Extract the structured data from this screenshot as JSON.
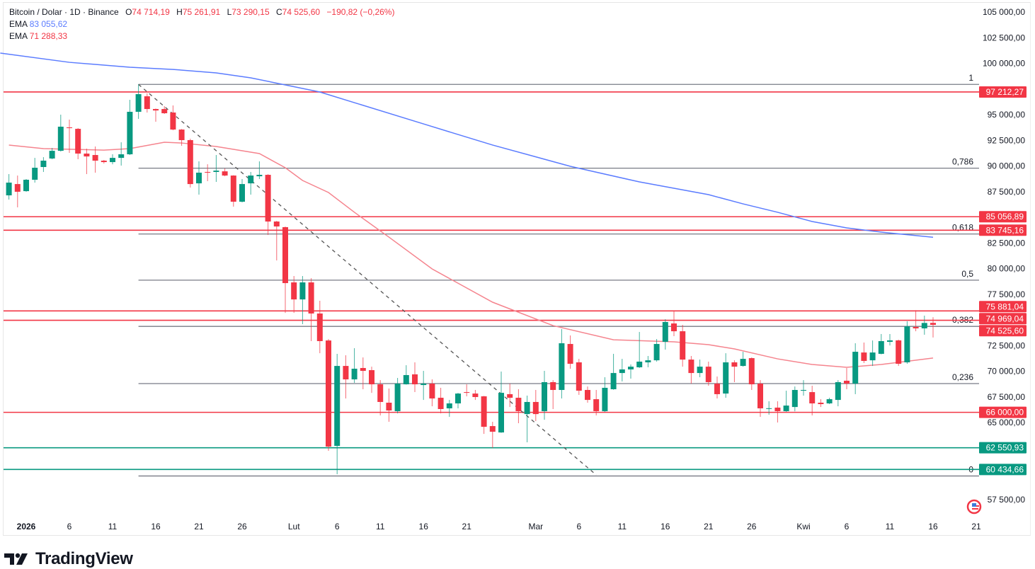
{
  "header": {
    "symbol": "Bitcoin / Dolar · 1D · Binance",
    "o_label": "O",
    "o": "74 714,19",
    "h_label": "H",
    "h": "75 261,91",
    "l_label": "L",
    "l": "73 290,15",
    "c_label": "C",
    "c": "74 525,60",
    "change": "−190,82 (−0,26%)",
    "ema1_label": "EMA",
    "ema1_value": "83 055,62",
    "ema2_label": "EMA",
    "ema2_value": "71 288,33"
  },
  "branding": {
    "name": "TradingView"
  },
  "colors": {
    "up": "#089981",
    "down": "#F23645",
    "ema_long": "#5B7CFF",
    "ema_short": "#F5848E",
    "fib": "#787B86",
    "support_green": "#089981"
  },
  "chart_data": {
    "type": "candlestick",
    "title": "Bitcoin / Dolar · 1D · Binance",
    "ylim": [
      55800,
      105500
    ],
    "xlim": [
      "2025-12-29",
      "2026-04-26"
    ],
    "grid": false,
    "y_ticks": [
      {
        "value": 105000,
        "label": "105 000,00"
      },
      {
        "value": 102500,
        "label": "102 500,00"
      },
      {
        "value": 100000,
        "label": "100 000,00"
      },
      {
        "value": 95000,
        "label": "95 000,00"
      },
      {
        "value": 92500,
        "label": "92 500,00"
      },
      {
        "value": 90000,
        "label": "90 000,00"
      },
      {
        "value": 87500,
        "label": "87 500,00"
      },
      {
        "value": 82500,
        "label": "82 500,00"
      },
      {
        "value": 80000,
        "label": "80 000,00"
      },
      {
        "value": 77500,
        "label": "77 500,00"
      },
      {
        "value": 72500,
        "label": "72 500,00"
      },
      {
        "value": 70000,
        "label": "70 000,00"
      },
      {
        "value": 67500,
        "label": "67 500,00"
      },
      {
        "value": 65000,
        "label": "65 000,00"
      },
      {
        "value": 57500,
        "label": "57 500,00"
      }
    ],
    "x_ticks": [
      {
        "date": "2026-01-01",
        "label": "2026",
        "bold": true
      },
      {
        "date": "2026-01-06",
        "label": "6"
      },
      {
        "date": "2026-01-11",
        "label": "11"
      },
      {
        "date": "2026-01-16",
        "label": "16"
      },
      {
        "date": "2026-01-21",
        "label": "21"
      },
      {
        "date": "2026-01-26",
        "label": "26"
      },
      {
        "date": "2026-02-01",
        "label": "Lut"
      },
      {
        "date": "2026-02-06",
        "label": "6"
      },
      {
        "date": "2026-02-11",
        "label": "11"
      },
      {
        "date": "2026-02-16",
        "label": "16"
      },
      {
        "date": "2026-02-21",
        "label": "21"
      },
      {
        "date": "2026-03-01",
        "label": "Mar"
      },
      {
        "date": "2026-03-06",
        "label": "6"
      },
      {
        "date": "2026-03-11",
        "label": "11"
      },
      {
        "date": "2026-03-16",
        "label": "16"
      },
      {
        "date": "2026-03-21",
        "label": "21"
      },
      {
        "date": "2026-03-26",
        "label": "26"
      },
      {
        "date": "2026-04-01",
        "label": "Kwi"
      },
      {
        "date": "2026-04-06",
        "label": "6"
      },
      {
        "date": "2026-04-11",
        "label": "11"
      },
      {
        "date": "2026-04-16",
        "label": "16"
      },
      {
        "date": "2026-04-21",
        "label": "21"
      }
    ],
    "horizontal_levels": [
      {
        "value": 97212.27,
        "label": "97 212,27",
        "color": "#F23645"
      },
      {
        "value": 85056.89,
        "label": "85 056,89",
        "color": "#F23645"
      },
      {
        "value": 83745.16,
        "label": "83 745,16",
        "color": "#F23645"
      },
      {
        "value": 75881.04,
        "label": "75 881,04",
        "color": "#F23645"
      },
      {
        "value": 74969.04,
        "label": "74 969,04",
        "color": "#F23645"
      },
      {
        "value": 66000.0,
        "label": "66 000,00",
        "color": "#F23645"
      },
      {
        "value": 62550.93,
        "label": "62 550,93",
        "color": "#089981"
      },
      {
        "value": 60434.66,
        "label": "60 434,66",
        "color": "#089981"
      }
    ],
    "last_price": {
      "value": 74525.6,
      "label": "74 525,60",
      "color": "#F23645"
    },
    "fibonacci": {
      "start_date": "2026-01-14",
      "high": 97950,
      "low": 59800,
      "levels": [
        {
          "ratio": 1,
          "label": "1"
        },
        {
          "ratio": 0.786,
          "label": "0,786"
        },
        {
          "ratio": 0.618,
          "label": "0,618"
        },
        {
          "ratio": 0.5,
          "label": "0,5"
        },
        {
          "ratio": 0.382,
          "label": "0,382"
        },
        {
          "ratio": 0.236,
          "label": "0,236"
        },
        {
          "ratio": 0,
          "label": "0"
        }
      ]
    },
    "trendline": {
      "style": "dashed",
      "from": [
        "2026-01-14",
        97950
      ],
      "to": [
        "2026-03-08",
        59900
      ]
    },
    "ema_long": [
      [
        "2025-12-29",
        101000
      ],
      [
        "2026-01-06",
        100100
      ],
      [
        "2026-01-13",
        99620
      ],
      [
        "2026-01-18",
        99410
      ],
      [
        "2026-01-23",
        99070
      ],
      [
        "2026-01-27",
        98590
      ],
      [
        "2026-01-31",
        97900
      ],
      [
        "2026-02-04",
        97210
      ],
      [
        "2026-02-08",
        96170
      ],
      [
        "2026-02-16",
        94100
      ],
      [
        "2026-02-24",
        92040
      ],
      [
        "2026-03-05",
        89970
      ],
      [
        "2026-03-13",
        88450
      ],
      [
        "2026-03-21",
        87210
      ],
      [
        "2026-03-25",
        86310
      ],
      [
        "2026-03-29",
        85490
      ],
      [
        "2026-04-02",
        84590
      ],
      [
        "2026-04-06",
        83970
      ],
      [
        "2026-04-10",
        83560
      ],
      [
        "2026-04-16",
        83055.62
      ]
    ],
    "ema_short": [
      [
        "2025-12-30",
        92040
      ],
      [
        "2026-01-03",
        91690
      ],
      [
        "2026-01-10",
        91550
      ],
      [
        "2026-01-13",
        91690
      ],
      [
        "2026-01-17",
        92310
      ],
      [
        "2026-01-19",
        92240
      ],
      [
        "2026-01-23",
        91900
      ],
      [
        "2026-01-28",
        91210
      ],
      [
        "2026-01-31",
        89830
      ],
      [
        "2026-02-02",
        88590
      ],
      [
        "2026-02-05",
        87420
      ],
      [
        "2026-02-08",
        85490
      ],
      [
        "2026-02-12",
        83070
      ],
      [
        "2026-02-17",
        79970
      ],
      [
        "2026-02-24",
        76730
      ],
      [
        "2026-03-03",
        74450
      ],
      [
        "2026-03-10",
        73070
      ],
      [
        "2026-03-17",
        72870
      ],
      [
        "2026-03-21",
        72590
      ],
      [
        "2026-03-24",
        72180
      ],
      [
        "2026-03-29",
        71210
      ],
      [
        "2026-04-02",
        70660
      ],
      [
        "2026-04-06",
        70390
      ],
      [
        "2026-04-10",
        70660
      ],
      [
        "2026-04-16",
        71288.33
      ]
    ],
    "candles_columns": [
      "date",
      "open",
      "high",
      "low",
      "close"
    ],
    "candles": [
      [
        "2025-12-30",
        87140,
        89210,
        86730,
        88380
      ],
      [
        "2025-12-31",
        88240,
        89070,
        85970,
        87490
      ],
      [
        "2026-01-01",
        87550,
        88730,
        87490,
        88660
      ],
      [
        "2026-01-02",
        88660,
        90790,
        88380,
        89830
      ],
      [
        "2026-01-03",
        89900,
        90860,
        89420,
        90520
      ],
      [
        "2026-01-04",
        90730,
        91760,
        90660,
        91480
      ],
      [
        "2026-01-05",
        91480,
        95000,
        91410,
        93830
      ],
      [
        "2026-01-06",
        93760,
        94520,
        91280,
        93690
      ],
      [
        "2026-01-07",
        93620,
        93700,
        90660,
        91210
      ],
      [
        "2026-01-08",
        91210,
        91690,
        89210,
        90930
      ],
      [
        "2026-01-09",
        91070,
        91900,
        89350,
        90520
      ],
      [
        "2026-01-10",
        90520,
        90590,
        90240,
        90380
      ],
      [
        "2026-01-11",
        90380,
        91140,
        90170,
        90790
      ],
      [
        "2026-01-12",
        90790,
        92310,
        90040,
        91140
      ],
      [
        "2026-01-13",
        91140,
        96450,
        91070,
        95280
      ],
      [
        "2026-01-14",
        95280,
        97950,
        94590,
        97000
      ],
      [
        "2026-01-15",
        96790,
        97070,
        95210,
        95550
      ],
      [
        "2026-01-16",
        95550,
        95600,
        94310,
        95410
      ],
      [
        "2026-01-17",
        95550,
        95830,
        95070,
        95140
      ],
      [
        "2026-01-18",
        95210,
        95900,
        93480,
        93550
      ],
      [
        "2026-01-19",
        93550,
        93600,
        91970,
        92520
      ],
      [
        "2026-01-20",
        92520,
        92660,
        87900,
        88240
      ],
      [
        "2026-01-21",
        88310,
        90450,
        87210,
        89350
      ],
      [
        "2026-01-22",
        89420,
        90170,
        88520,
        89350
      ],
      [
        "2026-01-23",
        89420,
        91070,
        88450,
        89550
      ],
      [
        "2026-01-24",
        89480,
        89760,
        89000,
        89070
      ],
      [
        "2026-01-25",
        89070,
        89100,
        86040,
        86520
      ],
      [
        "2026-01-26",
        86520,
        88730,
        86450,
        88240
      ],
      [
        "2026-01-27",
        88310,
        89420,
        87210,
        89070
      ],
      [
        "2026-01-28",
        89000,
        90450,
        88730,
        89140
      ],
      [
        "2026-01-29",
        89140,
        89200,
        83280,
        84590
      ],
      [
        "2026-01-30",
        84590,
        84650,
        80800,
        84110
      ],
      [
        "2026-01-31",
        84040,
        84100,
        75690,
        78590
      ],
      [
        "2026-02-01",
        78660,
        79280,
        75690,
        77000
      ],
      [
        "2026-02-02",
        77000,
        79280,
        74590,
        78660
      ],
      [
        "2026-02-03",
        78660,
        79070,
        72940,
        75630
      ],
      [
        "2026-02-04",
        75630,
        76870,
        71760,
        72940
      ],
      [
        "2026-02-05",
        73000,
        73140,
        62250,
        62660
      ],
      [
        "2026-02-06",
        62730,
        71700,
        59970,
        70520
      ],
      [
        "2026-02-07",
        70520,
        71560,
        67350,
        69210
      ],
      [
        "2026-02-08",
        69210,
        72250,
        68870,
        70250
      ],
      [
        "2026-02-09",
        70320,
        71350,
        68250,
        70040
      ],
      [
        "2026-02-10",
        70110,
        70450,
        67900,
        68730
      ],
      [
        "2026-02-11",
        68730,
        69140,
        65700,
        67010
      ],
      [
        "2026-02-12",
        66940,
        68320,
        65080,
        66180
      ],
      [
        "2026-02-13",
        66110,
        69350,
        65900,
        68800
      ],
      [
        "2026-02-14",
        68730,
        70590,
        68700,
        69630
      ],
      [
        "2026-02-15",
        69700,
        70870,
        67970,
        68730
      ],
      [
        "2026-02-16",
        68660,
        70040,
        67210,
        68800
      ],
      [
        "2026-02-17",
        68800,
        69210,
        66590,
        67350
      ],
      [
        "2026-02-18",
        67420,
        68390,
        65900,
        66320
      ],
      [
        "2026-02-19",
        66390,
        67210,
        65560,
        66870
      ],
      [
        "2026-02-20",
        66870,
        67900,
        66390,
        67830
      ],
      [
        "2026-02-21",
        67970,
        68730,
        67560,
        67900
      ],
      [
        "2026-02-22",
        67830,
        68180,
        67210,
        67490
      ],
      [
        "2026-02-23",
        67560,
        67600,
        63900,
        64590
      ],
      [
        "2026-02-24",
        64660,
        65080,
        62530,
        64110
      ],
      [
        "2026-02-25",
        64040,
        69970,
        64000,
        67900
      ],
      [
        "2026-02-26",
        67770,
        68800,
        66520,
        67420
      ],
      [
        "2026-02-27",
        67420,
        68250,
        64940,
        66110
      ],
      [
        "2026-02-28",
        65830,
        67630,
        63080,
        67010
      ],
      [
        "2026-03-01",
        67010,
        68180,
        65150,
        65830
      ],
      [
        "2026-03-02",
        66110,
        70040,
        65280,
        68940
      ],
      [
        "2026-03-03",
        68940,
        69140,
        66320,
        68180
      ],
      [
        "2026-03-04",
        68180,
        74110,
        67350,
        72730
      ],
      [
        "2026-03-05",
        72660,
        73490,
        70250,
        70730
      ],
      [
        "2026-03-06",
        70870,
        71210,
        67700,
        68110
      ],
      [
        "2026-03-07",
        68180,
        68520,
        66940,
        67210
      ],
      [
        "2026-03-08",
        67280,
        68180,
        65700,
        66110
      ],
      [
        "2026-03-09",
        66110,
        69420,
        66040,
        68390
      ],
      [
        "2026-03-10",
        68250,
        71700,
        68200,
        69830
      ],
      [
        "2026-03-11",
        69830,
        71210,
        69010,
        70180
      ],
      [
        "2026-03-12",
        70180,
        70660,
        69280,
        70450
      ],
      [
        "2026-03-13",
        70390,
        73830,
        70320,
        70940
      ],
      [
        "2026-03-14",
        70870,
        71490,
        70390,
        71070
      ],
      [
        "2026-03-15",
        71070,
        73140,
        70940,
        72660
      ],
      [
        "2026-03-16",
        72870,
        75070,
        72110,
        74800
      ],
      [
        "2026-03-17",
        74660,
        75880,
        73420,
        73900
      ],
      [
        "2026-03-18",
        73900,
        74520,
        70450,
        71140
      ],
      [
        "2026-03-19",
        71140,
        71490,
        68800,
        69830
      ],
      [
        "2026-03-20",
        69830,
        71140,
        69420,
        70450
      ],
      [
        "2026-03-21",
        70450,
        70940,
        68590,
        68940
      ],
      [
        "2026-03-22",
        68800,
        69490,
        67350,
        67770
      ],
      [
        "2026-03-23",
        67830,
        71760,
        67420,
        70870
      ],
      [
        "2026-03-24",
        70870,
        71070,
        68940,
        70450
      ],
      [
        "2026-03-25",
        70520,
        71900,
        70450,
        71210
      ],
      [
        "2026-03-26",
        71280,
        71350,
        68180,
        68730
      ],
      [
        "2026-03-27",
        68800,
        69140,
        65560,
        66390
      ],
      [
        "2026-03-28",
        66350,
        67080,
        65770,
        66400
      ],
      [
        "2026-03-29",
        66460,
        67080,
        65010,
        66110
      ],
      [
        "2026-03-30",
        66110,
        68110,
        66050,
        66660
      ],
      [
        "2026-03-31",
        66520,
        68520,
        66100,
        68180
      ],
      [
        "2026-04-01",
        68110,
        69140,
        67630,
        68180
      ],
      [
        "2026-04-02",
        67970,
        68590,
        65700,
        66870
      ],
      [
        "2026-04-03",
        66940,
        67280,
        66520,
        66800
      ],
      [
        "2026-04-04",
        66870,
        67420,
        66800,
        67280
      ],
      [
        "2026-04-05",
        67210,
        69140,
        66590,
        68940
      ],
      [
        "2026-04-06",
        69080,
        70320,
        68250,
        68800
      ],
      [
        "2026-04-07",
        68800,
        72730,
        67770,
        71900
      ],
      [
        "2026-04-08",
        71830,
        72800,
        70800,
        71010
      ],
      [
        "2026-04-09",
        71070,
        73000,
        70520,
        71830
      ],
      [
        "2026-04-10",
        71700,
        73630,
        71650,
        72940
      ],
      [
        "2026-04-11",
        72870,
        73630,
        72520,
        73010
      ],
      [
        "2026-04-12",
        73010,
        73080,
        70520,
        70730
      ],
      [
        "2026-04-13",
        70870,
        74870,
        70730,
        74380
      ],
      [
        "2026-04-14",
        74320,
        75950,
        73900,
        74180
      ],
      [
        "2026-04-15",
        74180,
        75420,
        73560,
        74710
      ],
      [
        "2026-04-16",
        74714.19,
        75261.91,
        73290.15,
        74525.6
      ]
    ]
  }
}
